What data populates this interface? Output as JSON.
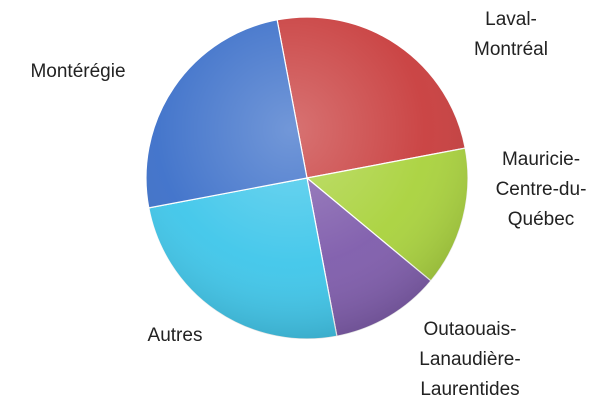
{
  "chart_data": {
    "type": "pie",
    "categories": [
      [
        "Laval-",
        "Montréal"
      ],
      [
        "Mauricie-",
        "Centre-du-",
        "Québec"
      ],
      [
        "Outaouais-",
        "Lanaudière-",
        "Laurentides"
      ],
      [
        "Autres"
      ],
      [
        "Montérégie"
      ]
    ],
    "values": [
      25,
      14,
      11,
      25,
      25
    ],
    "colors": [
      "#c83c3c",
      "#a9d23c",
      "#7e5bab",
      "#3ec6ea",
      "#3b6fc9"
    ]
  }
}
